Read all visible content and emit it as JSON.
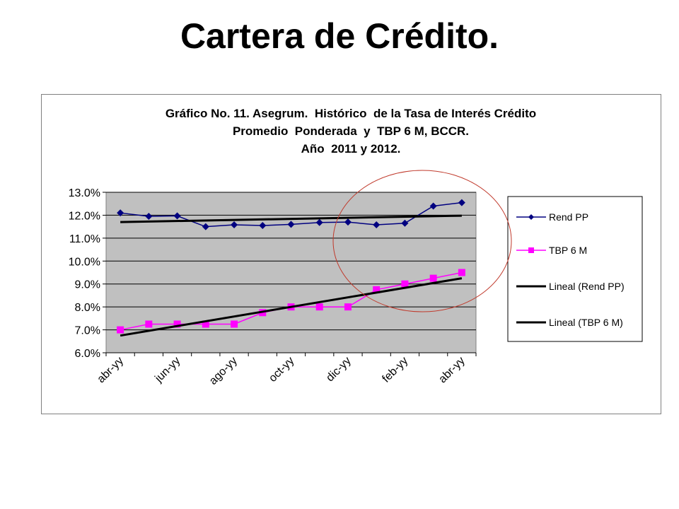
{
  "slide": {
    "title": "Cartera de Crédito."
  },
  "chart_data": {
    "type": "line",
    "title_lines": [
      "Gráfico No. 11. Asegrum.  Histórico  de la Tasa de Interés Crédito",
      "Promedio  Ponderada  y  TBP 6 M, BCCR.",
      "Año  2011 y 2012."
    ],
    "xlabel": "",
    "ylabel": "",
    "x_tick_labels": [
      "abr-yy",
      "jun-yy",
      "ago-yy",
      "oct-yy",
      "dic-yy",
      "feb-yy",
      "abr-yy"
    ],
    "x_count": 13,
    "y_ticks": [
      "6.0%",
      "7.0%",
      "8.0%",
      "9.0%",
      "10.0%",
      "11.0%",
      "12.0%",
      "13.0%"
    ],
    "ylim": [
      6.0,
      13.0
    ],
    "grid": true,
    "plot_background": "#c0c0c0",
    "legend_position": "right",
    "series": [
      {
        "name": "Rend PP",
        "color": "#000080",
        "marker": "diamond",
        "values": [
          12.1,
          11.95,
          11.97,
          11.5,
          11.58,
          11.55,
          11.6,
          11.68,
          11.7,
          11.58,
          11.65,
          12.4,
          12.55
        ]
      },
      {
        "name": "TBP 6 M",
        "color": "#ff00ff",
        "marker": "square",
        "values": [
          7.0,
          7.25,
          7.25,
          7.25,
          7.25,
          7.75,
          8.0,
          8.0,
          8.0,
          8.75,
          9.0,
          9.25,
          9.5
        ]
      },
      {
        "name": "Lineal (Rend PP)",
        "color": "#000000",
        "marker": "none",
        "trend": [
          11.7,
          11.98
        ]
      },
      {
        "name": "Lineal (TBP 6 M)",
        "color": "#000000",
        "marker": "none",
        "trend": [
          6.75,
          9.25
        ]
      }
    ]
  }
}
